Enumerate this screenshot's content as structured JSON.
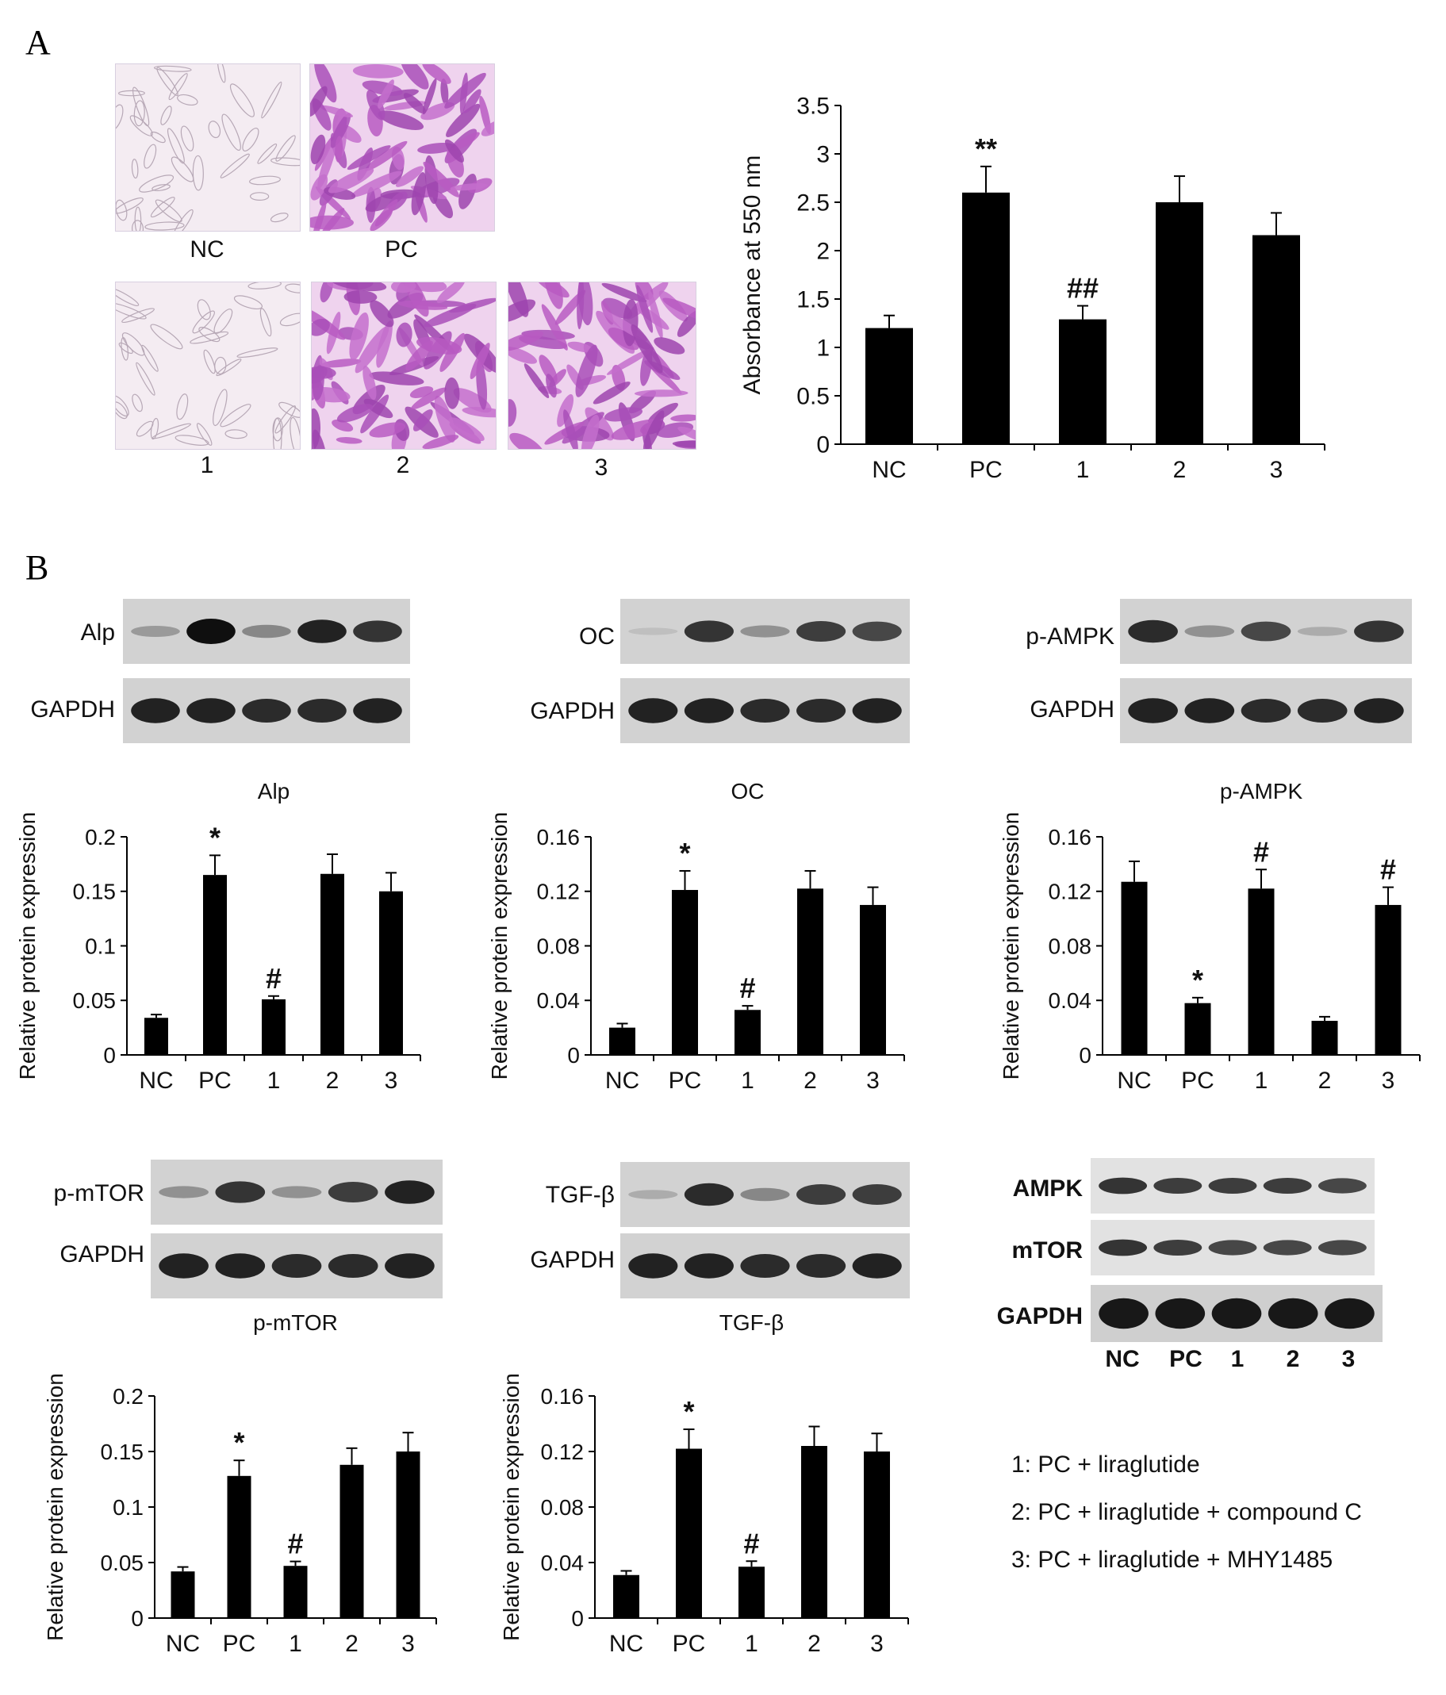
{
  "panels": {
    "a": "A",
    "b": "B"
  },
  "micrographs": [
    {
      "label": "NC",
      "stain": "light"
    },
    {
      "label": "PC",
      "stain": "heavy"
    },
    {
      "label": "1",
      "stain": "light"
    },
    {
      "label": "2",
      "stain": "heavy"
    },
    {
      "label": "3",
      "stain": "heavy"
    }
  ],
  "blots": [
    {
      "target": "Alp",
      "loading": "GAPDH",
      "bands": [
        0.25,
        1.0,
        0.35,
        0.9,
        0.8
      ],
      "loading_bands": [
        0.9,
        0.9,
        0.85,
        0.85,
        0.9
      ]
    },
    {
      "target": "OC",
      "loading": "GAPDH",
      "bands": [
        0.05,
        0.8,
        0.3,
        0.75,
        0.7
      ],
      "loading_bands": [
        0.9,
        0.9,
        0.85,
        0.85,
        0.9
      ]
    },
    {
      "target": "p-AMPK",
      "loading": "GAPDH",
      "bands": [
        0.85,
        0.3,
        0.7,
        0.15,
        0.8
      ],
      "loading_bands": [
        0.9,
        0.9,
        0.85,
        0.85,
        0.9
      ]
    },
    {
      "target": "p-mTOR",
      "loading": "GAPDH",
      "bands": [
        0.3,
        0.8,
        0.3,
        0.75,
        0.9
      ],
      "loading_bands": [
        0.9,
        0.9,
        0.85,
        0.85,
        0.9
      ]
    },
    {
      "target": "TGF-β",
      "loading": "GAPDH",
      "bands": [
        0.15,
        0.85,
        0.35,
        0.75,
        0.75
      ],
      "loading_bands": [
        0.9,
        0.9,
        0.85,
        0.85,
        0.9
      ]
    }
  ],
  "total_blot": {
    "rows": [
      {
        "label": "AMPK",
        "bands": [
          0.8,
          0.75,
          0.75,
          0.75,
          0.7
        ]
      },
      {
        "label": "mTOR",
        "bands": [
          0.8,
          0.75,
          0.7,
          0.7,
          0.7
        ]
      },
      {
        "label": "GAPDH",
        "bands": [
          0.95,
          0.95,
          0.95,
          0.95,
          0.95
        ]
      }
    ],
    "lanes": [
      "NC",
      "PC",
      "1",
      "2",
      "3"
    ]
  },
  "legend": [
    "1: PC + liraglutide",
    "2: PC + liraglutide + compound C",
    "3: PC + liraglutide + MHY1485"
  ],
  "chart_data": [
    {
      "type": "bar",
      "title": "",
      "categories": [
        "NC",
        "PC",
        "1",
        "2",
        "3"
      ],
      "values": [
        1.2,
        2.6,
        1.29,
        2.5,
        2.16
      ],
      "errors": [
        0.13,
        0.27,
        0.14,
        0.27,
        0.23
      ],
      "annotations": [
        "",
        "**",
        "##",
        "",
        ""
      ],
      "ylabel": "Absorbance at 550 nm",
      "ylim": [
        0,
        3.5
      ],
      "yticks": [
        "0",
        "0.5",
        "1",
        "1.5",
        "2",
        "2.5",
        "3",
        "3.5"
      ],
      "color": "#000000"
    },
    {
      "type": "bar",
      "title": "Alp",
      "categories": [
        "NC",
        "PC",
        "1",
        "2",
        "3"
      ],
      "values": [
        0.034,
        0.165,
        0.051,
        0.166,
        0.15
      ],
      "errors": [
        0.003,
        0.018,
        0.003,
        0.018,
        0.017
      ],
      "annotations": [
        "",
        "*",
        "#",
        "",
        ""
      ],
      "ylabel": "Relative protein expression",
      "ylim": [
        0,
        0.2
      ],
      "yticks": [
        "0",
        "0.05",
        "0.1",
        "0.15",
        "0.2"
      ],
      "color": "#000000"
    },
    {
      "type": "bar",
      "title": "OC",
      "categories": [
        "NC",
        "PC",
        "1",
        "2",
        "3"
      ],
      "values": [
        0.02,
        0.121,
        0.033,
        0.122,
        0.11
      ],
      "errors": [
        0.003,
        0.014,
        0.003,
        0.013,
        0.013
      ],
      "annotations": [
        "",
        "*",
        "#",
        "",
        ""
      ],
      "ylabel": "Relative protein expression",
      "ylim": [
        0,
        0.16
      ],
      "yticks": [
        "0",
        "0.04",
        "0.08",
        "0.12",
        "0.16"
      ],
      "color": "#000000"
    },
    {
      "type": "bar",
      "title": "p-AMPK",
      "categories": [
        "NC",
        "PC",
        "1",
        "2",
        "3"
      ],
      "values": [
        0.127,
        0.038,
        0.122,
        0.025,
        0.11
      ],
      "errors": [
        0.015,
        0.004,
        0.014,
        0.003,
        0.013
      ],
      "annotations": [
        "",
        "*",
        "#",
        "",
        "#"
      ],
      "ylabel": "Relative protein expression",
      "ylim": [
        0,
        0.16
      ],
      "yticks": [
        "0",
        "0.04",
        "0.08",
        "0.12",
        "0.16"
      ],
      "color": "#000000"
    },
    {
      "type": "bar",
      "title": "p-mTOR",
      "categories": [
        "NC",
        "PC",
        "1",
        "2",
        "3"
      ],
      "values": [
        0.042,
        0.128,
        0.047,
        0.138,
        0.15
      ],
      "errors": [
        0.004,
        0.014,
        0.004,
        0.015,
        0.017
      ],
      "annotations": [
        "",
        "*",
        "#",
        "",
        ""
      ],
      "ylabel": "Relative protein expression",
      "ylim": [
        0,
        0.2
      ],
      "yticks": [
        "0",
        "0.05",
        "0.1",
        "0.15",
        "0.2"
      ],
      "color": "#000000"
    },
    {
      "type": "bar",
      "title": "TGF-β",
      "categories": [
        "NC",
        "PC",
        "1",
        "2",
        "3"
      ],
      "values": [
        0.031,
        0.122,
        0.037,
        0.124,
        0.12
      ],
      "errors": [
        0.003,
        0.014,
        0.004,
        0.014,
        0.013
      ],
      "annotations": [
        "",
        "*",
        "#",
        "",
        ""
      ],
      "ylabel": "Relative protein expression",
      "ylim": [
        0,
        0.16
      ],
      "yticks": [
        "0",
        "0.04",
        "0.08",
        "0.12",
        "0.16"
      ],
      "color": "#000000"
    }
  ]
}
